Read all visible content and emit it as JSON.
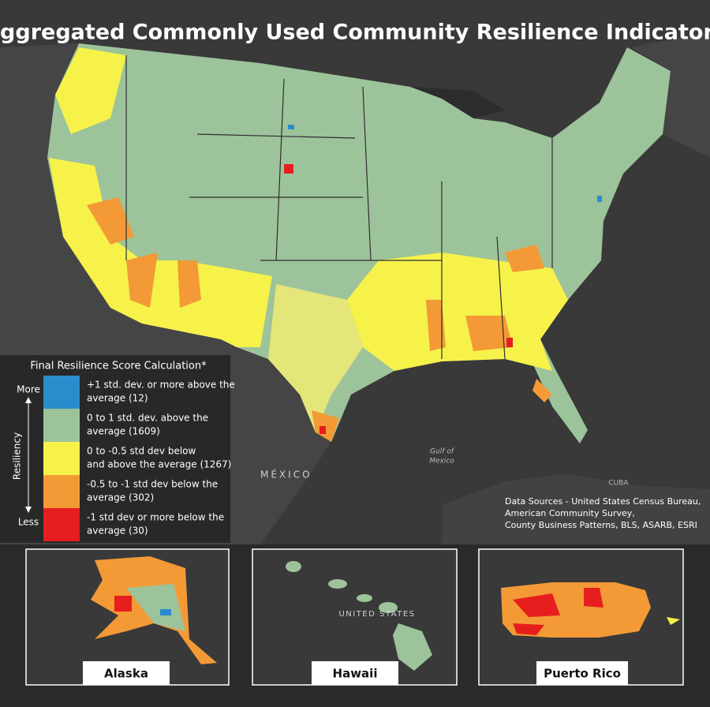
{
  "title": "Aggregated Commonly Used Community Resilience Indicators",
  "legend": {
    "title": "Final Resilience Score Calculation*",
    "more": "More",
    "less": "Less",
    "axis_label": "Resiliency",
    "items": [
      {
        "lines": [
          "+1 std. dev. or more above the",
          "average (12)"
        ],
        "color": "#2b8ccc"
      },
      {
        "lines": [
          "0 to 1 std. dev. above the",
          "average (1609)"
        ],
        "color": "#9dc39a"
      },
      {
        "lines": [
          "0 to -0.5 std dev below",
          "and above the average (1267)"
        ],
        "color": "#f6f24a"
      },
      {
        "lines": [
          "-0.5 to -1 std dev below the",
          "average (302)"
        ],
        "color": "#f39a36"
      },
      {
        "lines": [
          "-1 std dev or more below the",
          "average (30)"
        ],
        "color": "#e61e1e"
      }
    ]
  },
  "map_labels": {
    "mexico": "MÉXICO",
    "gulf": [
      "Gulf of",
      "Mexico"
    ],
    "cuba": "CUBA"
  },
  "data_sources": [
    "Data Sources - United States Census Bureau,",
    "American Community Survey,",
    "County Business Patterns, BLS, ASARB, ESRI"
  ],
  "insets": [
    {
      "label": "Alaska"
    },
    {
      "label": "Hawaii",
      "note": "UNITED STATES"
    },
    {
      "label": "Puerto Rico"
    }
  ]
}
